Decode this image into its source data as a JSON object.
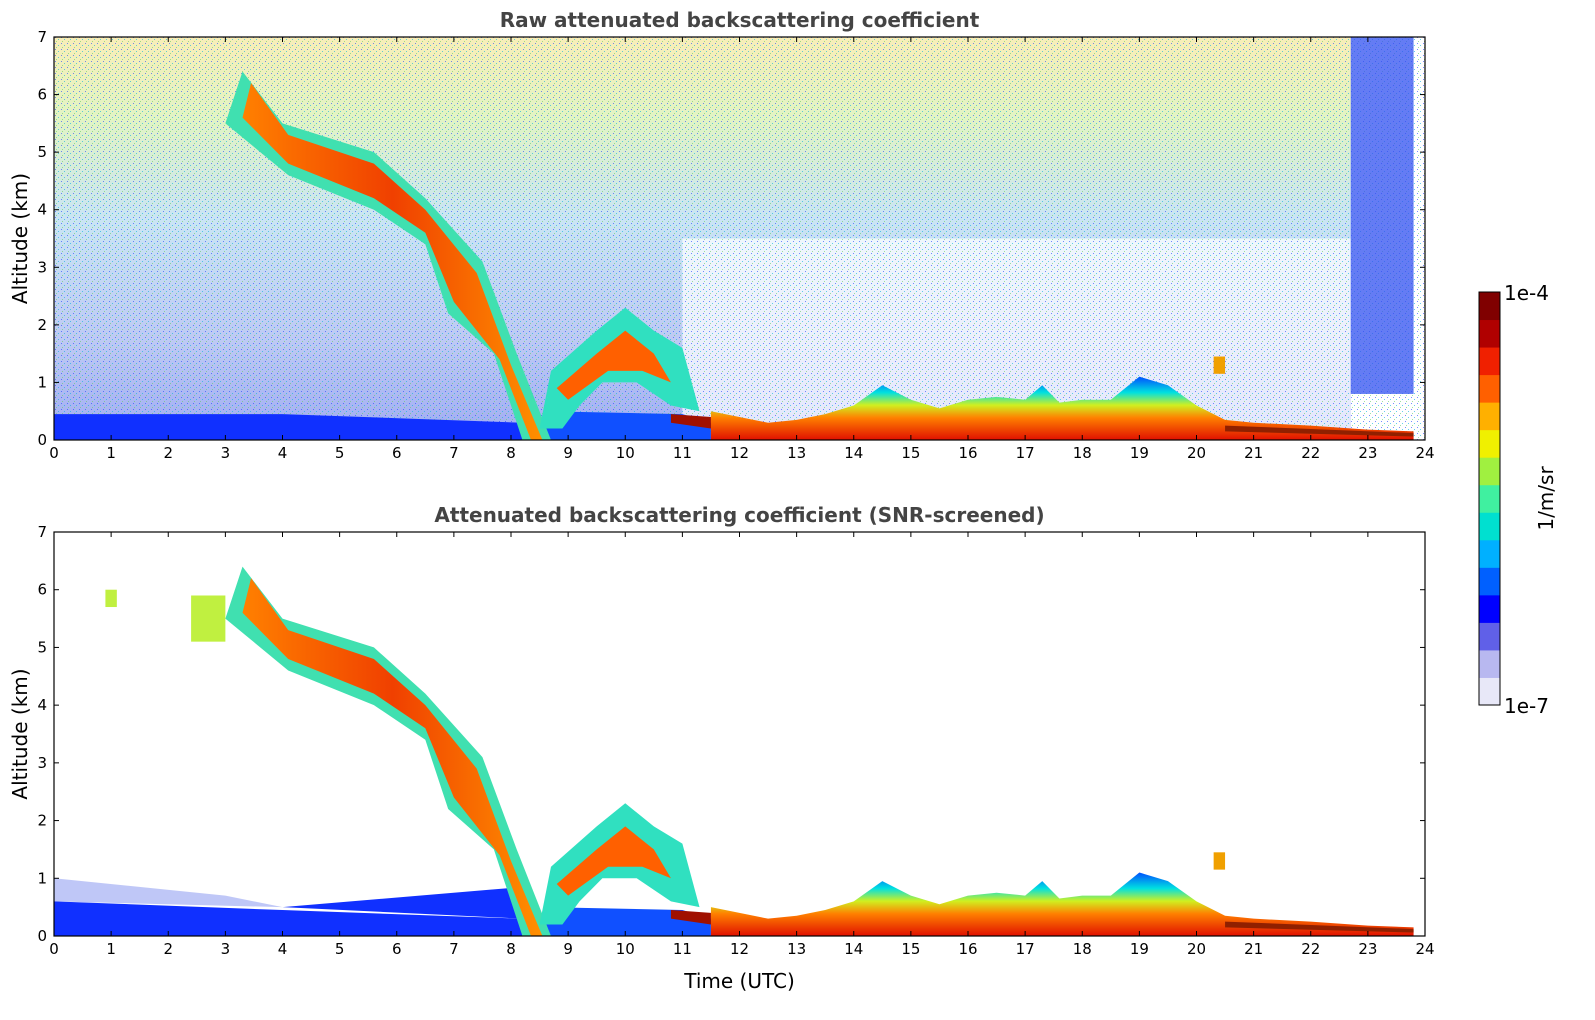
{
  "chart_data": [
    {
      "type": "heatmap",
      "panel": "top",
      "title": "Raw attenuated backscattering coefficient",
      "xlabel": "",
      "ylabel": "Altitude (km)",
      "xlim": [
        0,
        24
      ],
      "ylim": [
        0,
        7
      ],
      "xticks": [
        "0",
        "1",
        "2",
        "3",
        "4",
        "5",
        "6",
        "7",
        "8",
        "9",
        "10",
        "11",
        "12",
        "13",
        "14",
        "15",
        "16",
        "17",
        "18",
        "19",
        "20",
        "21",
        "22",
        "23",
        "24"
      ],
      "yticks": [
        "0",
        "1",
        "2",
        "3",
        "4",
        "5",
        "6",
        "7"
      ],
      "features": [
        {
          "name": "aerosol-layer",
          "start_hour": 3.2,
          "end_hour": 8.6,
          "top_km_start": 6.3,
          "top_km_end": 0.0,
          "level": "high"
        },
        {
          "name": "boundary-layer",
          "start_hour": 11.5,
          "end_hour": 23.8,
          "top_km": 0.9,
          "level": "high"
        },
        {
          "name": "low-noise-layer",
          "start_hour": 0,
          "end_hour": 8.2,
          "top_km": 0.45,
          "level": "low"
        },
        {
          "name": "residual-layer",
          "start_hour": 8.6,
          "end_hour": 11,
          "top_km": 2.3,
          "level": "mid"
        }
      ]
    },
    {
      "type": "heatmap",
      "panel": "bottom",
      "title": "Attenuated backscattering coefficient (SNR-screened)",
      "xlabel": "Time (UTC)",
      "ylabel": "Altitude (km)",
      "xlim": [
        0,
        24
      ],
      "ylim": [
        0,
        7
      ],
      "xticks": [
        "0",
        "1",
        "2",
        "3",
        "4",
        "5",
        "6",
        "7",
        "8",
        "9",
        "10",
        "11",
        "12",
        "13",
        "14",
        "15",
        "16",
        "17",
        "18",
        "19",
        "20",
        "21",
        "22",
        "23",
        "24"
      ],
      "yticks": [
        "0",
        "1",
        "2",
        "3",
        "4",
        "5",
        "6",
        "7"
      ]
    }
  ],
  "colorbar": {
    "label": "1/m/sr",
    "max_label": "1e-4",
    "min_label": "1e-7",
    "colors": [
      "#e8e8f8",
      "#b8b8f0",
      "#6060e8",
      "#0000ff",
      "#0060ff",
      "#00b0ff",
      "#00e0d0",
      "#40f0a0",
      "#a0f040",
      "#f0f000",
      "#ffb000",
      "#ff6000",
      "#f02000",
      "#b00000",
      "#800000"
    ]
  }
}
